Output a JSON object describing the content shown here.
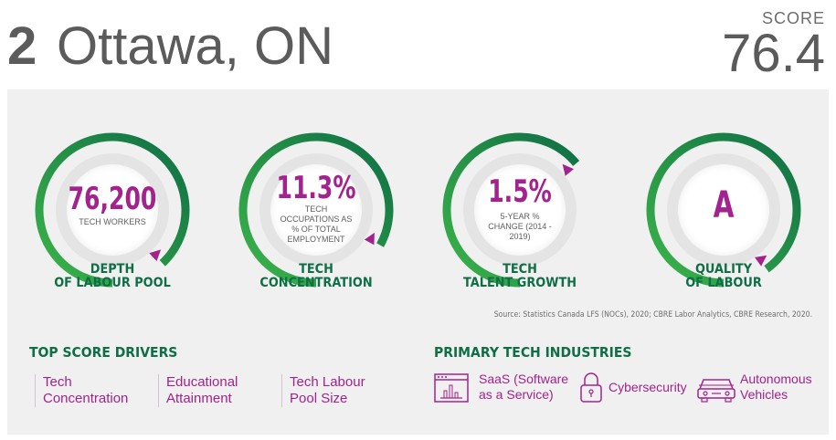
{
  "header": {
    "rank": "2",
    "city": "Ottawa, ON",
    "score_label": "SCORE",
    "score_value": "76.4"
  },
  "gauges": [
    {
      "value": "76,200",
      "caption": "TECH WORKERS",
      "title": "DEPTH\nOF LABOUR POOL",
      "fill_fraction": 0.88
    },
    {
      "value": "11.3%",
      "caption": "TECH OCCUPATIONS AS % OF TOTAL EMPLOYMENT",
      "title": "TECH\nCONCENTRATION",
      "fill_fraction": 0.83
    },
    {
      "value": "1.5%",
      "caption": "5-YEAR % CHANGE (2014 - 2019)",
      "title": "TECH\nTALENT GROWTH",
      "fill_fraction": 0.64
    },
    {
      "value": "A",
      "caption": "",
      "title": "QUALITY\nOF LABOUR",
      "fill_fraction": 0.9
    }
  ],
  "source": "Source: Statistics Canada LFS (NOCs), 2020; CBRE Labor Analytics, CBRE Research, 2020.",
  "drivers": {
    "title": "TOP SCORE DRIVERS",
    "items": [
      "Tech Concentration",
      "Educational Attainment",
      "Tech Labour Pool Size"
    ]
  },
  "industries": {
    "title": "PRIMARY TECH INDUSTRIES",
    "items": [
      {
        "label": "SaaS (Software as a Service)",
        "icon": "browser-chart-icon"
      },
      {
        "label": "Cybersecurity",
        "icon": "padlock-icon"
      },
      {
        "label": "Autonomous Vehicles",
        "icon": "car-icon"
      }
    ]
  },
  "colors": {
    "magenta": "#a3228d",
    "dark_green": "#0f6e45",
    "light_green": "#3cb54a",
    "panel": "#f0f0f0"
  }
}
